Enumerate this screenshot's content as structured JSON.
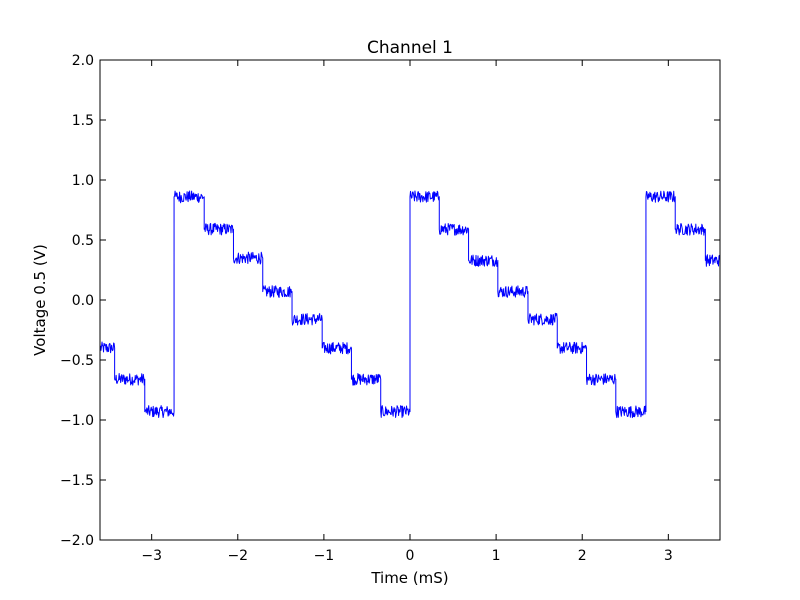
{
  "chart_data": {
    "type": "line",
    "title": "Channel 1",
    "xlabel": "Time (mS)",
    "ylabel": "Voltage 0.5 (V)",
    "xlim": [
      -3.6,
      3.6
    ],
    "ylim": [
      -2.0,
      2.0
    ],
    "x_ticks": [
      -3,
      -2,
      -1,
      0,
      1,
      2,
      3
    ],
    "x_tick_labels": [
      "−3",
      "−2",
      "−1",
      "0",
      "1",
      "2",
      "3"
    ],
    "y_ticks": [
      -2.0,
      -1.5,
      -1.0,
      -0.5,
      0.0,
      0.5,
      1.0,
      1.5,
      2.0
    ],
    "y_tick_labels": [
      "−2.0",
      "−1.5",
      "−1.0",
      "−0.5",
      "0.0",
      "0.5",
      "1.0",
      "1.5",
      "2.0"
    ],
    "grid": false,
    "series": [
      {
        "color": "#0000ff",
        "noise_amplitude": 0.05,
        "x": [
          -3.6,
          -3.43,
          -3.43,
          -3.08,
          -3.08,
          -2.74,
          -2.74,
          -2.39,
          -2.39,
          -2.05,
          -2.05,
          -1.71,
          -1.71,
          -1.37,
          -1.37,
          -1.02,
          -1.02,
          -0.68,
          -0.68,
          -0.34,
          -0.34,
          0.0,
          0.0,
          0.34,
          0.34,
          0.68,
          0.68,
          1.02,
          1.02,
          1.37,
          1.37,
          1.71,
          1.71,
          2.05,
          2.05,
          2.39,
          2.39,
          2.74,
          2.74,
          3.08,
          3.08,
          3.43,
          3.43,
          3.6
        ],
        "y": [
          -0.4,
          -0.4,
          -0.66,
          -0.66,
          -0.93,
          -0.93,
          0.86,
          0.86,
          0.59,
          0.59,
          0.35,
          0.35,
          0.07,
          0.07,
          -0.16,
          -0.16,
          -0.4,
          -0.4,
          -0.66,
          -0.66,
          -0.93,
          -0.93,
          0.86,
          0.86,
          0.59,
          0.59,
          0.33,
          0.33,
          0.07,
          0.07,
          -0.16,
          -0.16,
          -0.4,
          -0.4,
          -0.66,
          -0.66,
          -0.93,
          -0.93,
          0.86,
          0.86,
          0.59,
          0.59,
          0.33,
          0.33
        ]
      }
    ]
  }
}
